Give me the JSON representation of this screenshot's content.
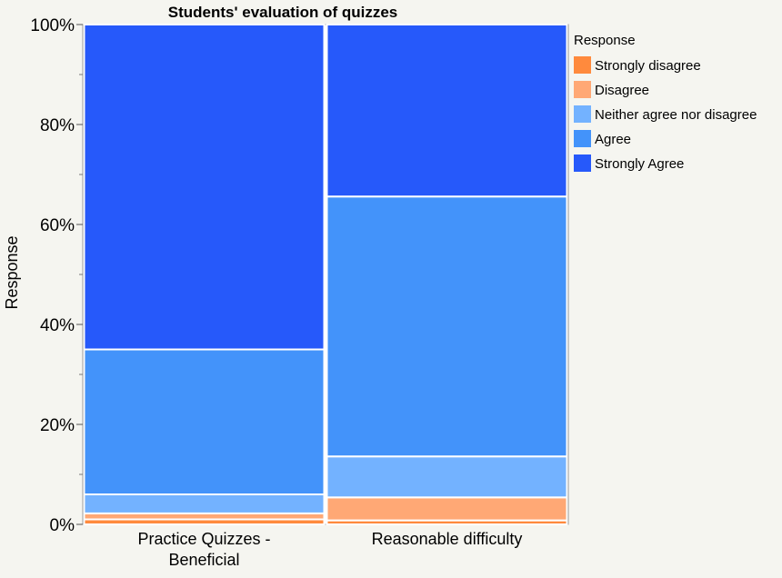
{
  "chart_data": {
    "type": "mosaic",
    "title": "Students' evaluation of quizzes",
    "ylabel": "Response",
    "xlabel": "",
    "ylim": [
      0,
      100
    ],
    "yticks": [
      "0%",
      "20%",
      "40%",
      "60%",
      "80%",
      "100%"
    ],
    "categories": [
      "Practice Quizzes - Beneficial",
      "Reasonable difficulty"
    ],
    "category_label_lines": [
      [
        "Practice Quizzes -",
        "Beneficial"
      ],
      [
        "Reasonable difficulty"
      ]
    ],
    "legend": {
      "title": "Response",
      "position": "right"
    },
    "series": [
      {
        "name": "Strongly disagree",
        "color": "#ff8a3d",
        "values": [
          1.0,
          0.8
        ]
      },
      {
        "name": "Disagree",
        "color": "#ffa875",
        "values": [
          1.2,
          4.6
        ]
      },
      {
        "name": "Neither agree nor disagree",
        "color": "#73b2ff",
        "values": [
          3.8,
          8.2
        ]
      },
      {
        "name": "Agree",
        "color": "#4393fa",
        "values": [
          29.0,
          52.0
        ]
      },
      {
        "name": "Strongly Agree",
        "color": "#2659fa",
        "values": [
          65.0,
          34.4
        ]
      }
    ]
  }
}
